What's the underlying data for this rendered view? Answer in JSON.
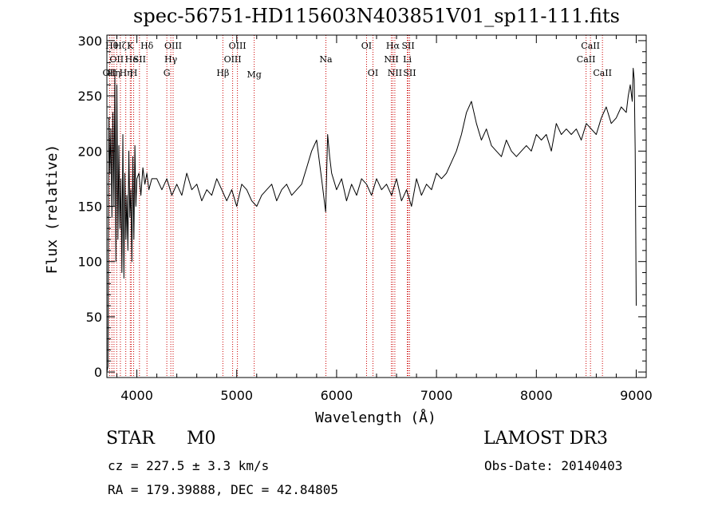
{
  "title": "spec-56751-HD115603N403851V01_sp11-111.fits",
  "info": {
    "object_class": "STAR",
    "subclass": "M0",
    "survey": "LAMOST DR3",
    "cz": "cz = 227.5 ± 3.3 km/s",
    "obs_date": "Obs-Date: 20140403",
    "coords": "RA = 179.39888, DEC =  42.84805"
  },
  "colors": {
    "spectrum": "#000000",
    "line_markers": "#cc0000",
    "axes": "#000000"
  },
  "chart_data": {
    "type": "line",
    "title": "spec-56751-HD115603N403851V01_sp11-111.fits",
    "xlabel": "Wavelength (Å)",
    "ylabel": "Flux (relative)",
    "xlim": [
      3700,
      9100
    ],
    "ylim": [
      -5,
      305
    ],
    "xticks": [
      4000,
      5000,
      6000,
      7000,
      8000,
      9000
    ],
    "yticks": [
      0,
      50,
      100,
      150,
      200,
      250,
      300
    ],
    "grid": false,
    "series": [
      {
        "x": [
          3700,
          3710,
          3720,
          3730,
          3740,
          3750,
          3760,
          3770,
          3780,
          3790,
          3800,
          3810,
          3820,
          3830,
          3840,
          3850,
          3860,
          3870,
          3880,
          3890,
          3900,
          3910,
          3920,
          3930,
          3940,
          3950,
          3960,
          3970,
          3980,
          3990,
          4000,
          4020,
          4040,
          4060,
          4080,
          4100,
          4120,
          4150,
          4200,
          4250,
          4300,
          4350,
          4400,
          4450,
          4500,
          4550,
          4600,
          4650,
          4700,
          4750,
          4800,
          4850,
          4900,
          4950,
          5000,
          5050,
          5100,
          5150,
          5200,
          5250,
          5300,
          5350,
          5400,
          5450,
          5500,
          5550,
          5600,
          5650,
          5700,
          5750,
          5800,
          5850,
          5890,
          5910,
          5930,
          5950,
          6000,
          6050,
          6100,
          6150,
          6200,
          6250,
          6300,
          6350,
          6400,
          6450,
          6500,
          6550,
          6600,
          6650,
          6700,
          6750,
          6800,
          6850,
          6900,
          6950,
          7000,
          7050,
          7100,
          7150,
          7200,
          7250,
          7300,
          7350,
          7400,
          7450,
          7500,
          7550,
          7600,
          7650,
          7700,
          7750,
          7800,
          7850,
          7900,
          7950,
          8000,
          8050,
          8100,
          8150,
          8200,
          8250,
          8300,
          8350,
          8400,
          8450,
          8500,
          8550,
          8600,
          8650,
          8700,
          8750,
          8800,
          8850,
          8900,
          8920,
          8940,
          8960,
          8970,
          8980,
          8990,
          9000
        ],
        "y": [
          0,
          5,
          230,
          180,
          220,
          140,
          235,
          150,
          270,
          100,
          260,
          120,
          205,
          130,
          175,
          90,
          215,
          85,
          180,
          120,
          160,
          110,
          200,
          140,
          165,
          100,
          195,
          120,
          205,
          150,
          175,
          180,
          160,
          185,
          170,
          180,
          165,
          175,
          175,
          165,
          175,
          160,
          170,
          160,
          180,
          165,
          170,
          155,
          165,
          160,
          175,
          165,
          155,
          165,
          150,
          170,
          165,
          155,
          150,
          160,
          165,
          170,
          155,
          165,
          170,
          160,
          165,
          170,
          185,
          200,
          210,
          175,
          145,
          215,
          195,
          180,
          165,
          175,
          155,
          170,
          160,
          175,
          170,
          160,
          175,
          165,
          170,
          160,
          175,
          155,
          165,
          150,
          175,
          160,
          170,
          165,
          180,
          175,
          180,
          190,
          200,
          215,
          235,
          245,
          225,
          210,
          220,
          205,
          200,
          195,
          210,
          200,
          195,
          200,
          205,
          200,
          215,
          210,
          215,
          200,
          225,
          215,
          220,
          215,
          220,
          210,
          225,
          220,
          215,
          230,
          240,
          225,
          230,
          240,
          235,
          250,
          260,
          245,
          275,
          265,
          200,
          60
        ]
      }
    ],
    "line_markers": [
      {
        "x": 3727,
        "label": "OII",
        "row": 2,
        "dy": 0
      },
      {
        "x": 3750,
        "label": "Hθ",
        "row": 0,
        "dy": 0
      },
      {
        "x": 3771,
        "label": "Hη",
        "row": 2,
        "dy": 0
      },
      {
        "x": 3798,
        "label": "OII",
        "row": 1,
        "dy": 0
      },
      {
        "x": 3835,
        "label": "Hζ",
        "row": 0,
        "dy": 0
      },
      {
        "x": 3889,
        "label": "Hη",
        "row": 2,
        "dy": 0
      },
      {
        "x": 3934,
        "label": "K",
        "row": 0,
        "dy": 0
      },
      {
        "x": 3945,
        "label": "He",
        "row": 1,
        "dy": 0
      },
      {
        "x": 3968,
        "label": "H",
        "row": 2,
        "dy": 0
      },
      {
        "x": 4026,
        "label": "SII",
        "row": 1,
        "dy": 0
      },
      {
        "x": 4101,
        "label": "Hδ",
        "row": 0,
        "dy": 0
      },
      {
        "x": 4300,
        "label": "G",
        "row": 2,
        "dy": 0
      },
      {
        "x": 4340,
        "label": "Hγ",
        "row": 1,
        "dy": 0
      },
      {
        "x": 4363,
        "label": "OIII",
        "row": 0,
        "dy": 0
      },
      {
        "x": 4861,
        "label": "Hβ",
        "row": 2,
        "dy": 0
      },
      {
        "x": 4959,
        "label": "OIII",
        "row": 1,
        "dy": 0
      },
      {
        "x": 5007,
        "label": "OIII",
        "row": 0,
        "dy": 0
      },
      {
        "x": 5175,
        "label": "Mg",
        "row": 2,
        "dy": 2
      },
      {
        "x": 5893,
        "label": "Na",
        "row": 1,
        "dy": 0
      },
      {
        "x": 6300,
        "label": "OI",
        "row": 0,
        "dy": 0
      },
      {
        "x": 6364,
        "label": "OI",
        "row": 2,
        "dy": 0
      },
      {
        "x": 6548,
        "label": "NII",
        "row": 1,
        "dy": 0
      },
      {
        "x": 6563,
        "label": "Hα",
        "row": 0,
        "dy": 0
      },
      {
        "x": 6583,
        "label": "NII",
        "row": 2,
        "dy": 0
      },
      {
        "x": 6708,
        "label": "Li",
        "row": 1,
        "dy": 0
      },
      {
        "x": 6716,
        "label": "SII",
        "row": 0,
        "dy": 0
      },
      {
        "x": 6731,
        "label": "SII",
        "row": 2,
        "dy": 0
      },
      {
        "x": 8498,
        "label": "CaII",
        "row": 1,
        "dy": 0
      },
      {
        "x": 8542,
        "label": "CaII",
        "row": 0,
        "dy": 0
      },
      {
        "x": 8662,
        "label": "CaII",
        "row": 2,
        "dy": 0
      }
    ]
  }
}
